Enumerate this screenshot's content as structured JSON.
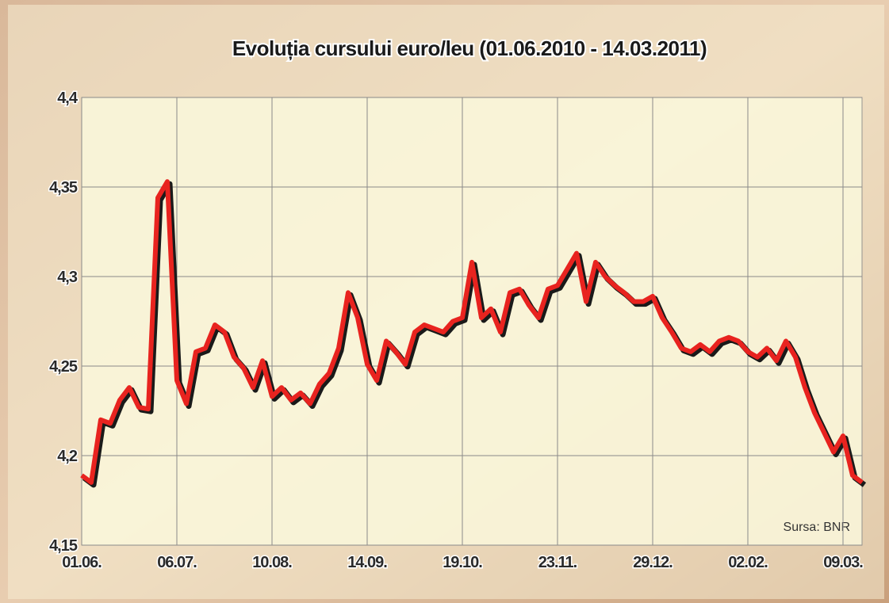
{
  "chart_data": {
    "type": "line",
    "title": "Evoluția cursului euro/leu (01.06.2010 - 14.03.2011)",
    "source": "Sursa: BNR",
    "categories": [
      "01.06.",
      null,
      null,
      null,
      null,
      null,
      null,
      null,
      null,
      null,
      "06.07.",
      null,
      null,
      null,
      null,
      null,
      null,
      null,
      null,
      null,
      "10.08.",
      null,
      null,
      null,
      null,
      null,
      null,
      null,
      null,
      null,
      "14.09.",
      null,
      null,
      null,
      null,
      null,
      null,
      null,
      null,
      null,
      "19.10.",
      null,
      null,
      null,
      null,
      null,
      null,
      null,
      null,
      null,
      "23.11.",
      null,
      null,
      null,
      null,
      null,
      null,
      null,
      null,
      null,
      "29.12.",
      null,
      null,
      null,
      null,
      null,
      null,
      null,
      null,
      null,
      "02.02.",
      null,
      null,
      null,
      null,
      null,
      null,
      null,
      null,
      null,
      "09.03.",
      null,
      null
    ],
    "series": [
      {
        "color": "#e8231f",
        "values": [
          4.189,
          4.185,
          4.22,
          4.218,
          4.231,
          4.238,
          4.227,
          4.226,
          4.344,
          4.353,
          4.242,
          4.229,
          4.258,
          4.26,
          4.273,
          4.269,
          4.255,
          4.249,
          4.238,
          4.253,
          4.233,
          4.238,
          4.231,
          4.235,
          4.229,
          4.24,
          4.246,
          4.26,
          4.291,
          4.277,
          4.251,
          4.242,
          4.264,
          4.258,
          4.251,
          4.269,
          4.273,
          4.271,
          4.269,
          4.275,
          4.277,
          4.308,
          4.277,
          4.282,
          4.269,
          4.291,
          4.293,
          4.284,
          4.277,
          4.293,
          4.295,
          4.304,
          4.313,
          4.286,
          4.308,
          4.3,
          4.295,
          4.291,
          4.286,
          4.286,
          4.289,
          4.277,
          4.269,
          4.26,
          4.258,
          4.262,
          4.258,
          4.264,
          4.266,
          4.264,
          4.258,
          4.255,
          4.26,
          4.253,
          4.264,
          4.255,
          4.238,
          4.224,
          4.213,
          4.202,
          4.211,
          4.189,
          4.185
        ]
      }
    ],
    "ylim": [
      4.15,
      4.4
    ],
    "yticks": [
      {
        "value": 4.15,
        "label": "4,15"
      },
      {
        "value": 4.2,
        "label": "4,2"
      },
      {
        "value": 4.25,
        "label": "4,25"
      },
      {
        "value": 4.3,
        "label": "4,3"
      },
      {
        "value": 4.35,
        "label": "4,35"
      },
      {
        "value": 4.4,
        "label": "4,4"
      }
    ],
    "grid": true
  }
}
